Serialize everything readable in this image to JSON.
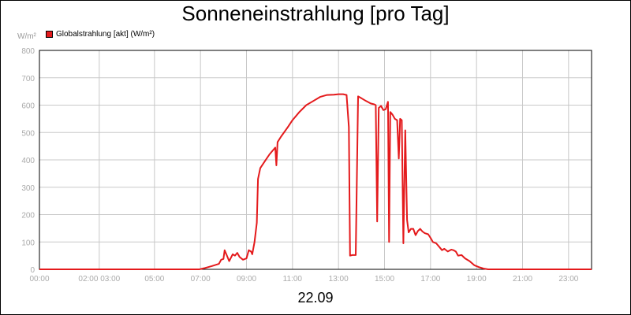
{
  "chart_data": {
    "type": "line",
    "title": "Sonneneinstrahlung [pro Tag]",
    "ylabel": "W/m²",
    "xlabel": "22.09",
    "ylim": [
      0,
      800
    ],
    "xlim": [
      0,
      24
    ],
    "grid": true,
    "legend_placement": "top-left",
    "y_ticks": [
      0,
      100,
      200,
      300,
      400,
      500,
      600,
      700,
      800
    ],
    "x_ticks": [
      {
        "x": 0,
        "label": "00:00"
      },
      {
        "x": 2.6,
        "label": "02:00 03:00"
      },
      {
        "x": 5,
        "label": "05:00"
      },
      {
        "x": 7,
        "label": "07:00"
      },
      {
        "x": 9,
        "label": "09:00"
      },
      {
        "x": 11,
        "label": "11:00"
      },
      {
        "x": 13,
        "label": "13:00"
      },
      {
        "x": 15,
        "label": "15:00"
      },
      {
        "x": 17,
        "label": "17:00"
      },
      {
        "x": 19,
        "label": "19:00"
      },
      {
        "x": 21,
        "label": "21:00"
      },
      {
        "x": 23,
        "label": "23:00"
      }
    ],
    "series": [
      {
        "name": "Globalstrahlung [akt] (W/m²)",
        "color": "#e41a1c",
        "points": [
          [
            0,
            0
          ],
          [
            6.95,
            0
          ],
          [
            7.2,
            5
          ],
          [
            7.5,
            12
          ],
          [
            7.8,
            20
          ],
          [
            7.9,
            35
          ],
          [
            8.0,
            38
          ],
          [
            8.05,
            70
          ],
          [
            8.15,
            50
          ],
          [
            8.25,
            30
          ],
          [
            8.4,
            55
          ],
          [
            8.5,
            50
          ],
          [
            8.6,
            60
          ],
          [
            8.7,
            45
          ],
          [
            8.85,
            35
          ],
          [
            9.0,
            40
          ],
          [
            9.1,
            70
          ],
          [
            9.2,
            65
          ],
          [
            9.25,
            55
          ],
          [
            9.35,
            100
          ],
          [
            9.45,
            170
          ],
          [
            9.5,
            330
          ],
          [
            9.6,
            370
          ],
          [
            9.8,
            395
          ],
          [
            10.0,
            420
          ],
          [
            10.2,
            440
          ],
          [
            10.25,
            445
          ],
          [
            10.3,
            380
          ],
          [
            10.35,
            465
          ],
          [
            10.5,
            485
          ],
          [
            10.8,
            520
          ],
          [
            11.0,
            545
          ],
          [
            11.3,
            575
          ],
          [
            11.6,
            600
          ],
          [
            11.9,
            615
          ],
          [
            12.2,
            630
          ],
          [
            12.5,
            637
          ],
          [
            12.8,
            638
          ],
          [
            13.0,
            640
          ],
          [
            13.2,
            640
          ],
          [
            13.35,
            637
          ],
          [
            13.45,
            520
          ],
          [
            13.5,
            50
          ],
          [
            13.6,
            52
          ],
          [
            13.75,
            52
          ],
          [
            13.85,
            632
          ],
          [
            14.0,
            625
          ],
          [
            14.2,
            615
          ],
          [
            14.4,
            606
          ],
          [
            14.55,
            603
          ],
          [
            14.62,
            600
          ],
          [
            14.68,
            175
          ],
          [
            14.75,
            590
          ],
          [
            14.85,
            597
          ],
          [
            14.95,
            582
          ],
          [
            15.05,
            585
          ],
          [
            15.15,
            612
          ],
          [
            15.2,
            100
          ],
          [
            15.25,
            575
          ],
          [
            15.35,
            565
          ],
          [
            15.45,
            550
          ],
          [
            15.55,
            545
          ],
          [
            15.62,
            405
          ],
          [
            15.68,
            550
          ],
          [
            15.75,
            545
          ],
          [
            15.82,
            95
          ],
          [
            15.9,
            508
          ],
          [
            15.98,
            180
          ],
          [
            16.05,
            135
          ],
          [
            16.15,
            148
          ],
          [
            16.25,
            148
          ],
          [
            16.35,
            125
          ],
          [
            16.45,
            140
          ],
          [
            16.55,
            148
          ],
          [
            16.65,
            138
          ],
          [
            16.75,
            132
          ],
          [
            16.9,
            128
          ],
          [
            17.0,
            115
          ],
          [
            17.1,
            100
          ],
          [
            17.25,
            95
          ],
          [
            17.4,
            80
          ],
          [
            17.5,
            70
          ],
          [
            17.6,
            75
          ],
          [
            17.75,
            65
          ],
          [
            17.9,
            72
          ],
          [
            18.0,
            70
          ],
          [
            18.1,
            65
          ],
          [
            18.2,
            50
          ],
          [
            18.35,
            52
          ],
          [
            18.5,
            40
          ],
          [
            18.7,
            30
          ],
          [
            18.9,
            15
          ],
          [
            19.1,
            8
          ],
          [
            19.3,
            3
          ],
          [
            19.5,
            0
          ],
          [
            24,
            0
          ]
        ]
      }
    ]
  }
}
